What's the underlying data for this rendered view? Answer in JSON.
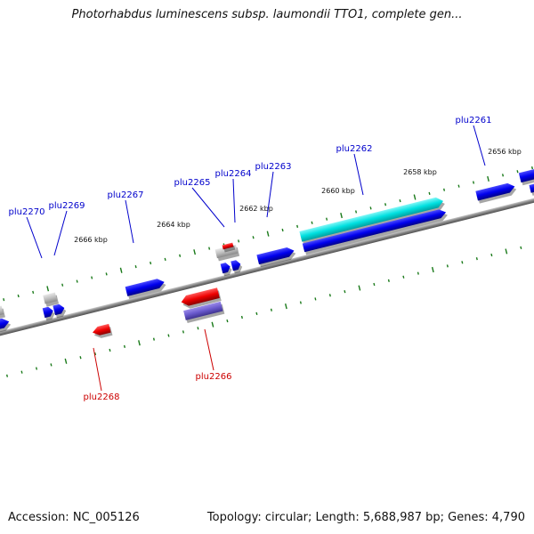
{
  "title": "Photorhabdus luminescens subsp. laumondii TTO1, complete gen...",
  "footer": {
    "accession": "Accession: NC_005126",
    "summary": "Topology: circular; Length: 5,688,987 bp; Genes: 4,790"
  },
  "colors": {
    "backbone": "#808080",
    "forward_gene": "#0000ee",
    "reverse_gene": "#ee0000",
    "highlight_gene": "#00e0e0",
    "grey_gene": "#bfbfbf",
    "purple_gene": "#6a5acd",
    "tick": "#1a7a1a",
    "forward_label": "#0000cc",
    "reverse_label": "#cc0000"
  },
  "kbp_labels": [
    "2656 kbp",
    "2658 kbp",
    "2660 kbp",
    "2662 kbp",
    "2664 kbp",
    "2666 kbp"
  ],
  "gene_labels": {
    "forward": [
      "plu2261",
      "plu2262",
      "plu2263",
      "plu2264",
      "plu2265",
      "plu2267",
      "plu2269",
      "plu2270"
    ],
    "reverse": [
      "plu2266",
      "plu2268"
    ]
  }
}
